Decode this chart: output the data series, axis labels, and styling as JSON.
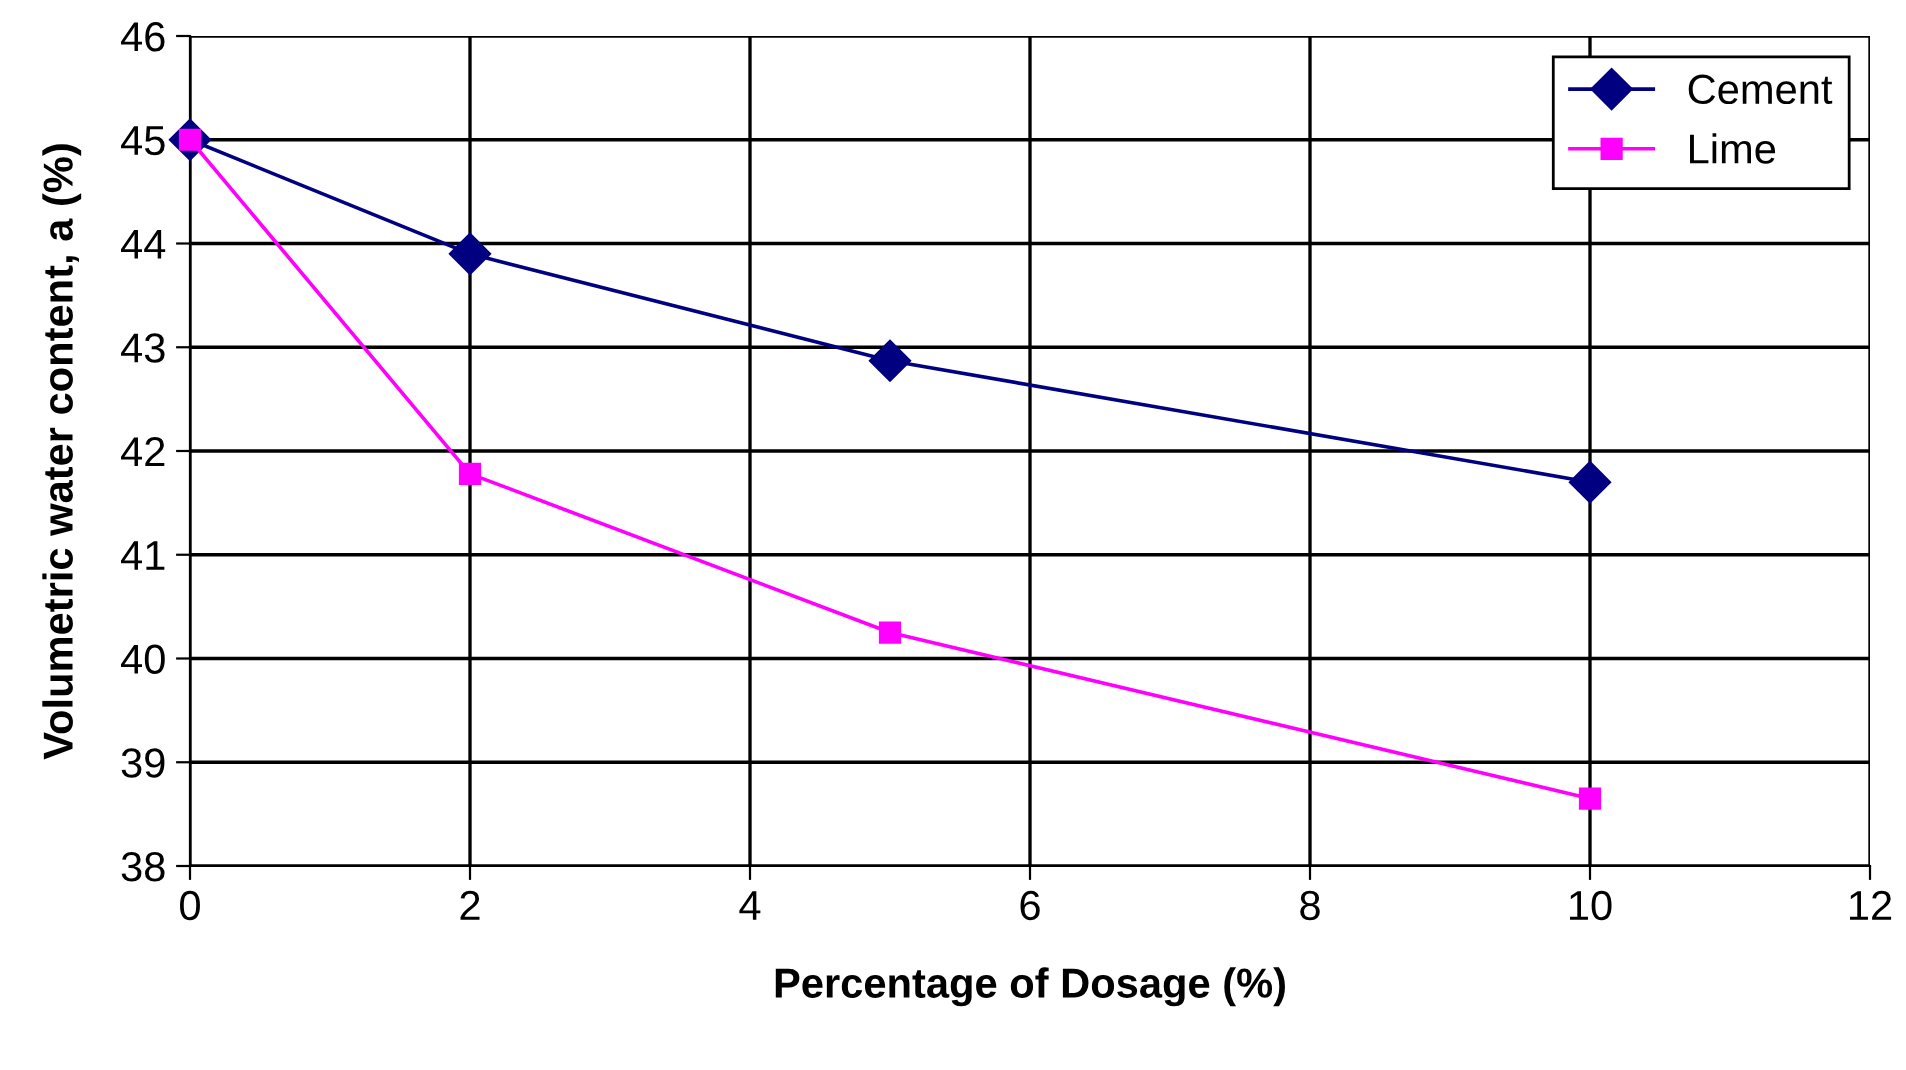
{
  "chart_data": {
    "type": "line",
    "xlabel": "Percentage of Dosage (%)",
    "ylabel": "Volumetric water content, a (%)",
    "x": [
      0,
      2,
      5,
      10
    ],
    "series": [
      {
        "name": "Cement",
        "color": "#000080",
        "marker": "diamond",
        "values": [
          45,
          43.9,
          42.87,
          41.7
        ]
      },
      {
        "name": "Lime",
        "color": "#ff00ff",
        "marker": "square",
        "values": [
          45,
          41.78,
          40.25,
          38.65
        ]
      }
    ],
    "xlim": [
      0,
      12
    ],
    "xticks": [
      0,
      2,
      4,
      6,
      8,
      10,
      12
    ],
    "ylim": [
      38,
      46
    ],
    "yticks": [
      38,
      39,
      40,
      41,
      42,
      43,
      44,
      45,
      46
    ],
    "grid": true,
    "legend": "top right",
    "line_style": "solid"
  }
}
